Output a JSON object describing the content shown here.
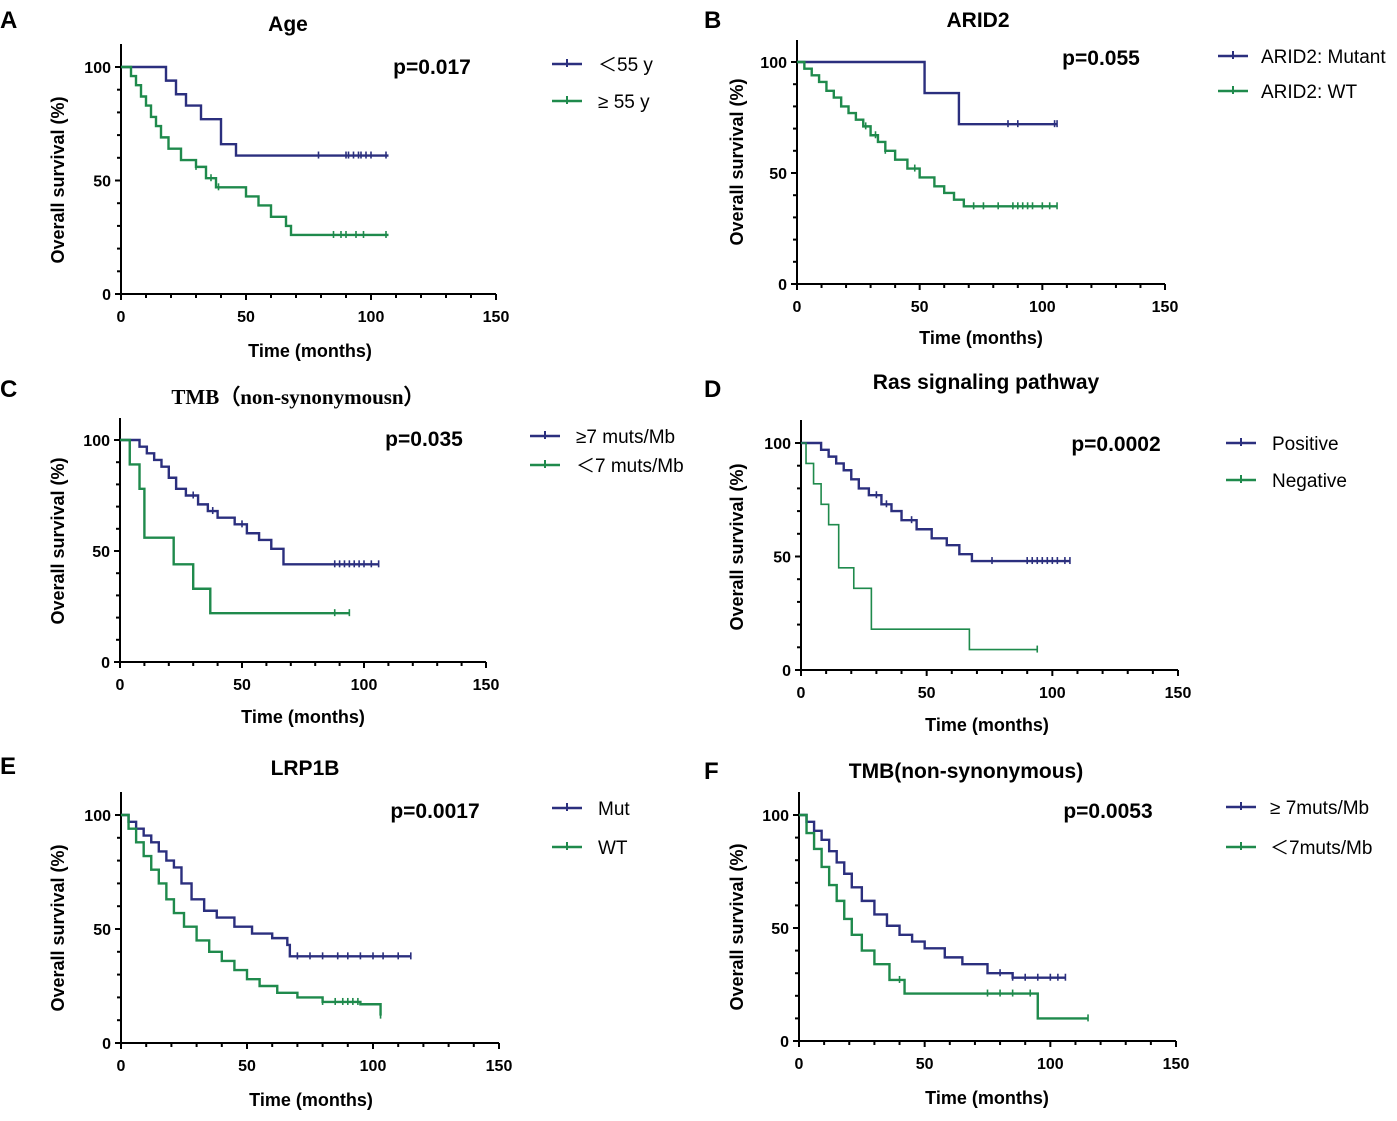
{
  "chart_data": [
    {
      "type": "line",
      "panel": "A",
      "title": "Age",
      "pvalue": "p=0.017",
      "xlabel": "Time (months)",
      "ylabel": "Overall survival (%)",
      "xlim": [
        0,
        150
      ],
      "ylim": [
        0,
        100
      ],
      "xticks": [
        "0",
        "50",
        "100",
        "150"
      ],
      "yticks": [
        "0",
        "50",
        "100"
      ],
      "series": [
        {
          "name": "＜55 y",
          "color": "#2b2f7e",
          "x": [
            0,
            18,
            22,
            26,
            32,
            40,
            46,
            107
          ],
          "y": [
            100,
            94,
            88,
            83,
            77,
            66,
            61,
            61
          ],
          "censored": [
            79,
            90,
            91,
            93,
            95,
            96,
            98,
            100,
            106
          ]
        },
        {
          "name": "≥ 55 y",
          "color": "#1f8a4c",
          "x": [
            0,
            4,
            6,
            8,
            10,
            12,
            14,
            16,
            19,
            24,
            30,
            34,
            38,
            44,
            50,
            55,
            60,
            66,
            68,
            107
          ],
          "y": [
            100,
            96,
            92,
            87,
            83,
            78,
            74,
            69,
            64,
            59,
            56,
            51,
            47,
            47,
            43,
            39,
            34,
            30,
            26,
            26
          ],
          "censored": [
            30,
            36,
            39,
            85,
            88,
            90,
            94,
            97,
            106
          ]
        }
      ]
    },
    {
      "type": "line",
      "panel": "B",
      "title": "ARID2",
      "pvalue": "p=0.055",
      "xlabel": "Time (months)",
      "ylabel": "Overall survival (%)",
      "xlim": [
        0,
        150
      ],
      "ylim": [
        0,
        100
      ],
      "xticks": [
        "0",
        "50",
        "100",
        "150"
      ],
      "yticks": [
        "0",
        "50",
        "100"
      ],
      "series": [
        {
          "name": "ARID2: Mutant",
          "color": "#2b2f7e",
          "x": [
            0,
            52,
            66,
            106
          ],
          "y": [
            100,
            86,
            72,
            72
          ],
          "censored": [
            86,
            90,
            105,
            106
          ]
        },
        {
          "name": "ARID2: WT",
          "color": "#1f8a4c",
          "x": [
            0,
            3,
            6,
            9,
            12,
            15,
            18,
            21,
            24,
            27,
            30,
            33,
            36,
            40,
            45,
            50,
            56,
            60,
            64,
            68,
            106
          ],
          "y": [
            100,
            97,
            94,
            91,
            87,
            84,
            80,
            77,
            74,
            71,
            67,
            64,
            60,
            56,
            52,
            48,
            44,
            41,
            38,
            35,
            35
          ],
          "censored": [
            28,
            32,
            36,
            48,
            72,
            76,
            82,
            88,
            90,
            92,
            94,
            96,
            100,
            103,
            106
          ]
        }
      ]
    },
    {
      "type": "line",
      "panel": "C",
      "title": "TMB（non-synonymousn）",
      "pvalue": "p=0.035",
      "xlabel": "Time (months)",
      "ylabel": "Overall survival (%)",
      "xlim": [
        0,
        150
      ],
      "ylim": [
        0,
        100
      ],
      "xticks": [
        "0",
        "50",
        "100",
        "150"
      ],
      "yticks": [
        "0",
        "50",
        "100"
      ],
      "series": [
        {
          "name": "≥7 muts/Mb",
          "color": "#2b2f7e",
          "x": [
            0,
            8,
            11,
            14,
            17,
            20,
            23,
            27,
            32,
            36,
            40,
            47,
            52,
            57,
            62,
            67,
            106
          ],
          "y": [
            100,
            97,
            94,
            91,
            88,
            83,
            78,
            75,
            71,
            68,
            65,
            62,
            58,
            55,
            51,
            44,
            44
          ],
          "censored": [
            30,
            38,
            50,
            88,
            90,
            92,
            94,
            96,
            98,
            100,
            103,
            106
          ]
        },
        {
          "name": "＜7 muts/Mb",
          "color": "#1f8a4c",
          "x": [
            0,
            4,
            8,
            10,
            22,
            30,
            37,
            94
          ],
          "y": [
            100,
            89,
            78,
            56,
            44,
            33,
            22,
            22
          ],
          "censored": [
            88,
            94
          ]
        }
      ]
    },
    {
      "type": "line",
      "panel": "D",
      "title": "Ras signaling pathway",
      "pvalue": "p=0.0002",
      "xlabel": "Time (months)",
      "ylabel": "Overall survival (%)",
      "xlim": [
        0,
        150
      ],
      "ylim": [
        0,
        100
      ],
      "xticks": [
        "0",
        "50",
        "100",
        "150"
      ],
      "yticks": [
        "0",
        "50",
        "100"
      ],
      "series": [
        {
          "name": "Positive",
          "color": "#2b2f7e",
          "x": [
            0,
            8,
            11,
            14,
            17,
            20,
            23,
            27,
            32,
            36,
            40,
            46,
            52,
            58,
            63,
            68,
            107
          ],
          "y": [
            100,
            97,
            94,
            91,
            88,
            84,
            80,
            77,
            73,
            70,
            66,
            62,
            58,
            55,
            51,
            48,
            48
          ],
          "censored": [
            30,
            34,
            44,
            76,
            90,
            92,
            94,
            96,
            98,
            100,
            102,
            105,
            107
          ]
        },
        {
          "name": "Negative",
          "color": "#1f8a4c",
          "x": [
            0,
            2,
            5,
            8,
            11,
            15,
            21,
            28,
            67,
            94
          ],
          "y": [
            100,
            91,
            82,
            73,
            64,
            45,
            36,
            18,
            9,
            9
          ],
          "censored": [
            94
          ]
        }
      ]
    },
    {
      "type": "line",
      "panel": "E",
      "title": "LRP1B",
      "pvalue": "p=0.0017",
      "xlabel": "Time (months)",
      "ylabel": "Overall survival (%)",
      "xlim": [
        0,
        150
      ],
      "ylim": [
        0,
        100
      ],
      "xticks": [
        "0",
        "50",
        "100",
        "150"
      ],
      "yticks": [
        "0",
        "50",
        "100"
      ],
      "series": [
        {
          "name": "Mut",
          "color": "#2b2f7e",
          "x": [
            0,
            3,
            6,
            9,
            12,
            15,
            18,
            21,
            24,
            28,
            33,
            38,
            45,
            52,
            60,
            66,
            67,
            115
          ],
          "y": [
            100,
            97,
            94,
            91,
            88,
            84,
            80,
            77,
            70,
            63,
            58,
            55,
            51,
            48,
            46,
            43,
            38,
            38
          ],
          "censored": [
            70,
            75,
            80,
            86,
            90,
            95,
            100,
            104,
            110,
            115
          ]
        },
        {
          "name": "WT",
          "color": "#1f8a4c",
          "x": [
            0,
            3,
            6,
            9,
            12,
            15,
            18,
            21,
            25,
            30,
            35,
            40,
            45,
            50,
            55,
            62,
            70,
            80,
            95,
            103
          ],
          "y": [
            100,
            94,
            88,
            82,
            76,
            70,
            63,
            57,
            51,
            45,
            40,
            36,
            32,
            28,
            25,
            22,
            20,
            18,
            17,
            12
          ],
          "censored": [
            80,
            85,
            88,
            90,
            92,
            94,
            103
          ]
        }
      ]
    },
    {
      "type": "line",
      "panel": "F",
      "title": "TMB(non-synonymous)",
      "pvalue": "p=0.0053",
      "xlabel": "Time (months)",
      "ylabel": "Overall survival (%)",
      "xlim": [
        0,
        150
      ],
      "ylim": [
        0,
        100
      ],
      "xticks": [
        "0",
        "50",
        "100",
        "150"
      ],
      "yticks": [
        "0",
        "50",
        "100"
      ],
      "series": [
        {
          "name": "≥ 7muts/Mb",
          "color": "#2b2f7e",
          "x": [
            0,
            3,
            6,
            9,
            12,
            15,
            18,
            21,
            25,
            30,
            35,
            40,
            45,
            50,
            58,
            65,
            75,
            85,
            106
          ],
          "y": [
            100,
            97,
            93,
            89,
            84,
            79,
            74,
            68,
            62,
            56,
            51,
            47,
            44,
            41,
            37,
            34,
            30,
            28,
            28
          ],
          "censored": [
            80,
            85,
            90,
            95,
            100,
            103,
            106
          ]
        },
        {
          "name": "＜7muts/Mb",
          "color": "#1f8a4c",
          "x": [
            0,
            3,
            6,
            9,
            12,
            15,
            18,
            21,
            25,
            30,
            36,
            42,
            95,
            115
          ],
          "y": [
            100,
            92,
            85,
            77,
            69,
            62,
            54,
            47,
            40,
            34,
            27,
            21,
            10,
            10
          ],
          "censored": [
            40,
            75,
            80,
            85,
            92,
            115
          ]
        }
      ]
    }
  ]
}
